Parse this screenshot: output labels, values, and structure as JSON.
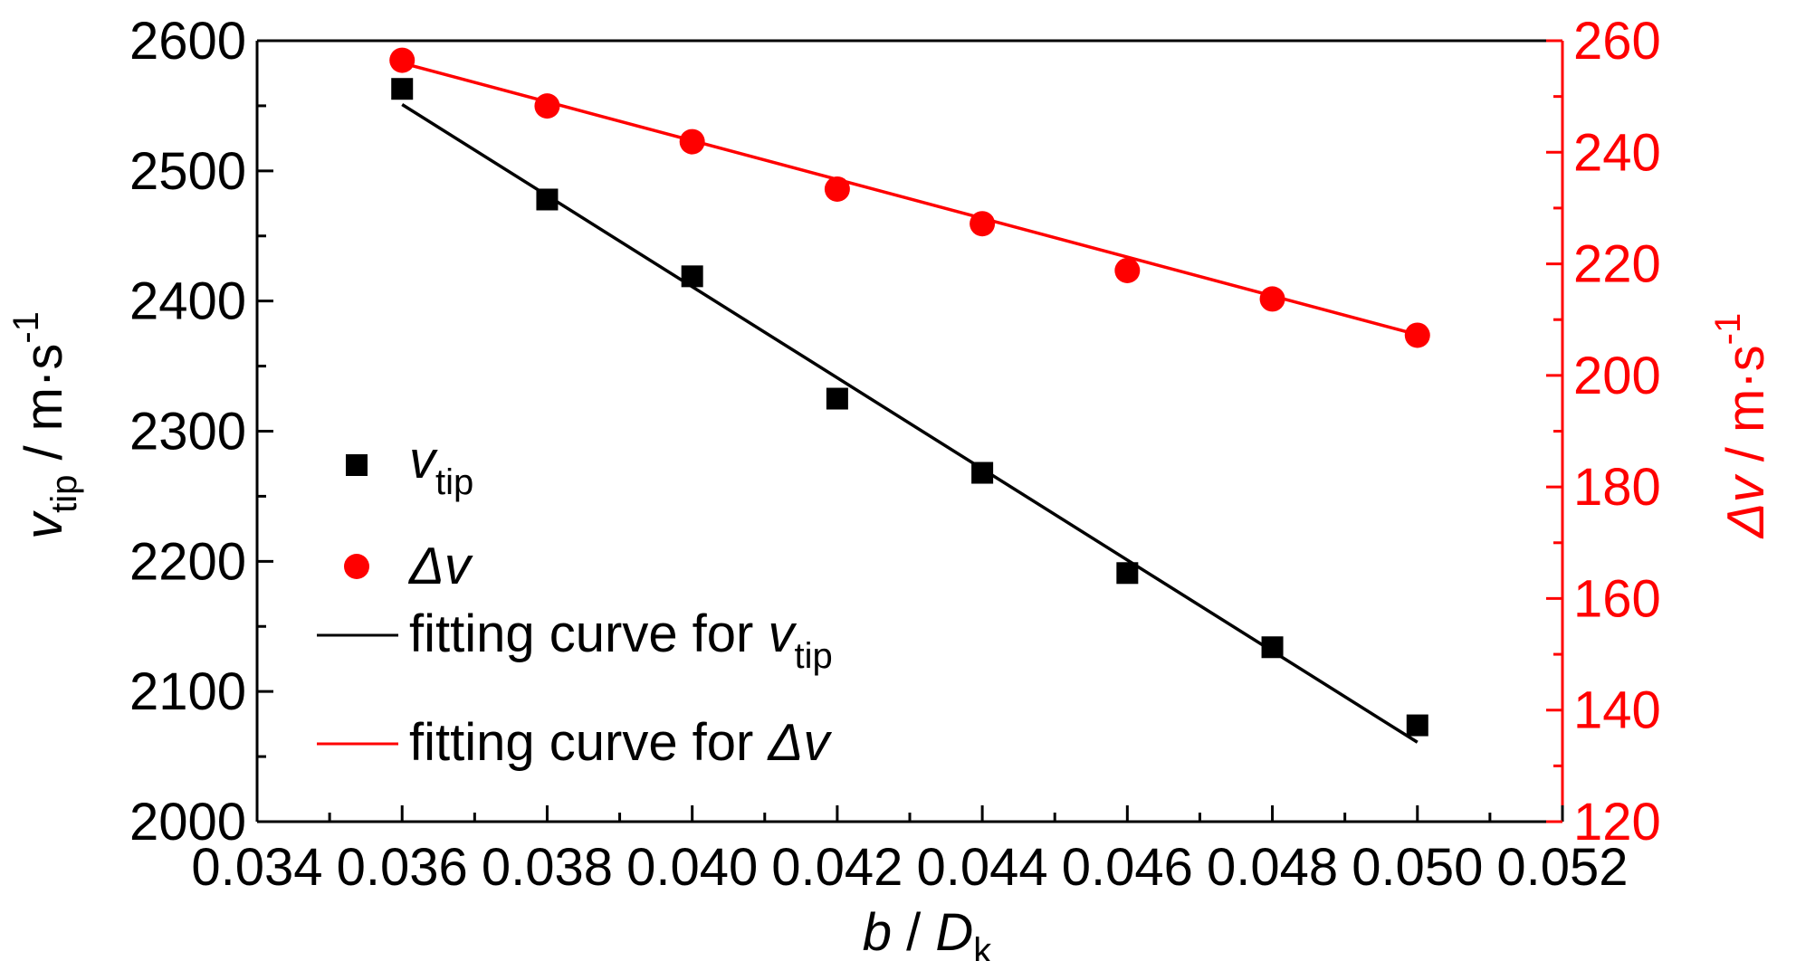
{
  "chart_data": {
    "type": "scatter",
    "x": [
      0.036,
      0.038,
      0.04,
      0.042,
      0.044,
      0.046,
      0.048,
      0.05
    ],
    "xlim": [
      0.034,
      0.052
    ],
    "xticks": [
      "0.034",
      "0.036",
      "0.038",
      "0.040",
      "0.042",
      "0.044",
      "0.046",
      "0.048",
      "0.050",
      "0.052"
    ],
    "xlabel": {
      "main": "b",
      "sep": " / ",
      "var": "D",
      "sub": "k"
    },
    "left_axis": {
      "ylim": [
        2000,
        2600
      ],
      "ticks": [
        "2000",
        "2100",
        "2200",
        "2300",
        "2400",
        "2500",
        "2600"
      ],
      "label": {
        "var": "v",
        "sub": "tip",
        "unit": " / m·s",
        "sup": "-1"
      },
      "color": "#000000"
    },
    "right_axis": {
      "ylim": [
        120,
        260
      ],
      "ticks": [
        "120",
        "140",
        "160",
        "180",
        "200",
        "220",
        "240",
        "260"
      ],
      "label": {
        "var": "Δv",
        "unit": " / m·s",
        "sup": "-1"
      },
      "color": "#ff0000"
    },
    "series": [
      {
        "name_var": "v",
        "name_sub": "tip",
        "axis": "left",
        "marker": "square",
        "color": "#000000",
        "values": [
          2563,
          2478,
          2419,
          2325,
          2268,
          2191,
          2134,
          2074
        ]
      },
      {
        "name_var": "Δv",
        "axis": "right",
        "marker": "circle",
        "color": "#ff0000",
        "values": [
          256.5,
          248.3,
          241.9,
          233.4,
          227.2,
          218.8,
          213.7,
          207.2
        ]
      }
    ],
    "fits": [
      {
        "label": "fitting curve for ",
        "name_var": "v",
        "name_sub": "tip",
        "axis": "left",
        "color": "#000000",
        "x": [
          0.036,
          0.05
        ],
        "values": [
          2551,
          2061
        ]
      },
      {
        "label": "fitting curve for ",
        "name_var": "Δv",
        "axis": "right",
        "color": "#ff0000",
        "x": [
          0.036,
          0.05
        ],
        "values": [
          256.0,
          207.3
        ]
      }
    ],
    "legend_position": "left-middle"
  }
}
